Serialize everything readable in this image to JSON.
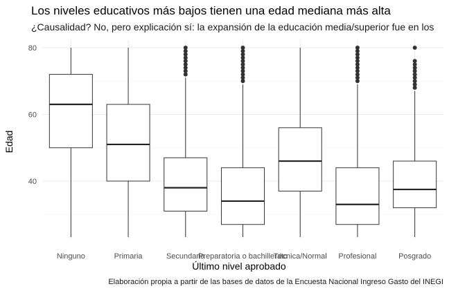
{
  "chart_data": {
    "type": "boxplot",
    "title": "Los niveles educativos más bajos tienen una edad mediana más alta",
    "subtitle": "¿Causalidad? No, pero explicación sí: la expansión de la educación media/superior fue en los",
    "caption": "Elaboración propia a partir de las bases de datos de la Encuesta Nacional Ingreso Gasto del INEGI",
    "xlabel": "Último nivel aprobado",
    "ylabel": "Edad",
    "ylim": [
      23,
      81
    ],
    "yticks": [
      40,
      60,
      80
    ],
    "grid": true,
    "categories": [
      "Ninguno",
      "Primaria",
      "Secundaria",
      "Preparatoria o bachillerato",
      "Técnica/Normal",
      "Profesional",
      "Posgrado"
    ],
    "boxes": [
      {
        "category": "Ninguno",
        "min": 23,
        "q1": 50,
        "median": 63,
        "q3": 72,
        "max": 80,
        "outliers": []
      },
      {
        "category": "Primaria",
        "min": 23,
        "q1": 40,
        "median": 51,
        "q3": 63,
        "max": 80,
        "outliers": []
      },
      {
        "category": "Secundaria",
        "min": 23,
        "q1": 31,
        "median": 38,
        "q3": 47,
        "max": 71,
        "outliers": [
          72,
          73,
          74,
          75,
          76,
          77,
          78,
          79,
          80
        ]
      },
      {
        "category": "Preparatoria o bachillerato",
        "min": 23,
        "q1": 27,
        "median": 34,
        "q3": 44,
        "max": 69,
        "outliers": [
          70,
          71,
          72,
          73,
          74,
          75,
          76,
          77,
          78,
          79,
          80
        ]
      },
      {
        "category": "Técnica/Normal",
        "min": 23,
        "q1": 37,
        "median": 46,
        "q3": 56,
        "max": 80,
        "outliers": []
      },
      {
        "category": "Profesional",
        "min": 23,
        "q1": 27,
        "median": 33,
        "q3": 44,
        "max": 69,
        "outliers": [
          70,
          71,
          72,
          73,
          74,
          75,
          76,
          77,
          78,
          79,
          80
        ]
      },
      {
        "category": "Posgrado",
        "min": 23,
        "q1": 32,
        "median": 37.5,
        "q3": 46,
        "max": 67,
        "outliers": [
          68,
          69,
          70,
          71,
          72,
          73,
          74,
          75,
          76,
          80
        ]
      }
    ]
  }
}
